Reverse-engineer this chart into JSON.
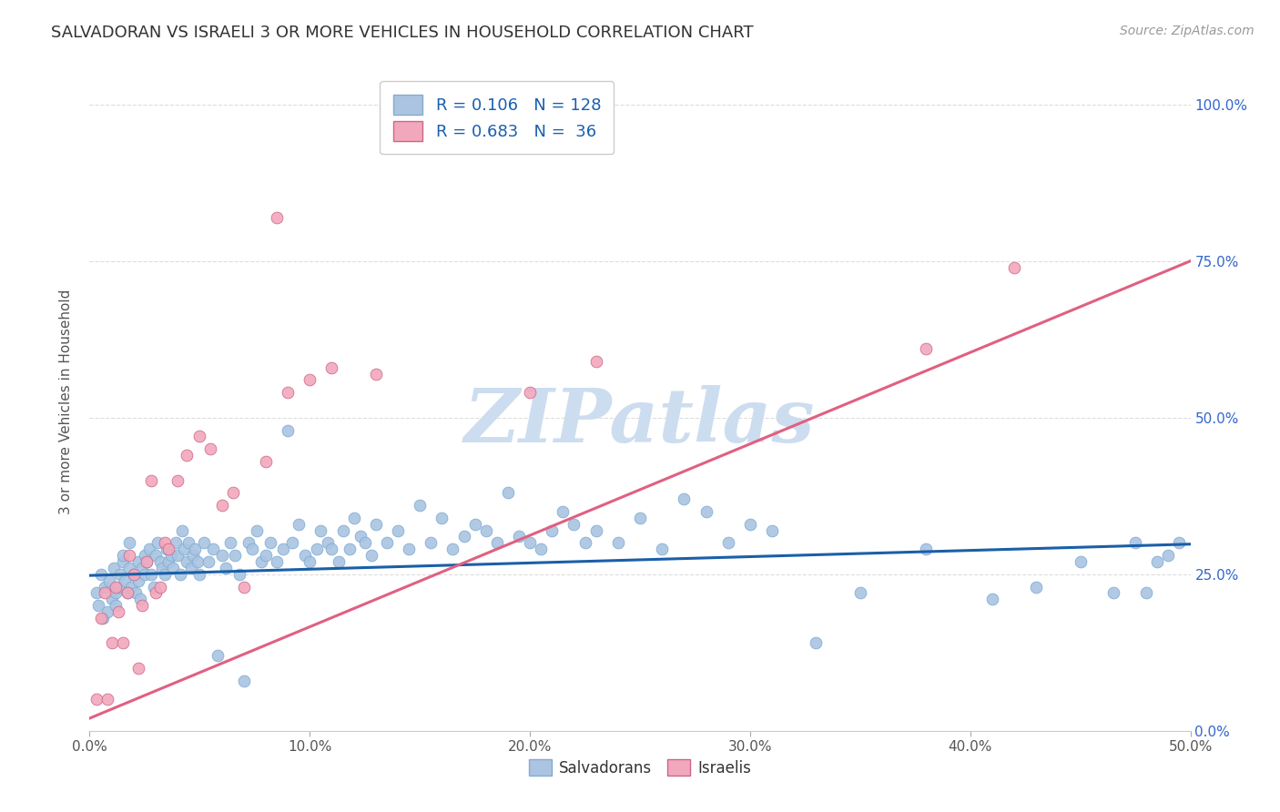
{
  "title": "SALVADORAN VS ISRAELI 3 OR MORE VEHICLES IN HOUSEHOLD CORRELATION CHART",
  "source": "Source: ZipAtlas.com",
  "ylabel": "3 or more Vehicles in Household",
  "xlim": [
    0.0,
    0.5
  ],
  "ylim": [
    0.0,
    1.05
  ],
  "xticks": [
    0.0,
    0.1,
    0.2,
    0.3,
    0.4,
    0.5
  ],
  "xtick_labels": [
    "0.0%",
    "10.0%",
    "20.0%",
    "30.0%",
    "40.0%",
    "50.0%"
  ],
  "yticks_right": [
    0.0,
    0.25,
    0.5,
    0.75,
    1.0
  ],
  "ytick_labels_right": [
    "0.0%",
    "25.0%",
    "50.0%",
    "75.0%",
    "100.0%"
  ],
  "salvadorans_R": 0.106,
  "salvadorans_N": 128,
  "israelis_R": 0.683,
  "israelis_N": 36,
  "scatter_color_salvadorans": "#aac4e2",
  "scatter_color_israelis": "#f2a8bc",
  "line_color_salvadorans": "#1a5fa8",
  "line_color_israelis": "#e06080",
  "legend_color_salvadorans": "#aac4e2",
  "legend_color_israelis": "#f2a8bc",
  "watermark_text": "ZIPatlas",
  "watermark_color": "#ccddef",
  "background_color": "#ffffff",
  "grid_color": "#dddddd",
  "title_fontsize": 13,
  "label_fontsize": 11,
  "tick_fontsize": 11,
  "legend_fontsize": 13,
  "source_fontsize": 10,
  "sal_line_x0": 0.0,
  "sal_line_y0": 0.248,
  "sal_line_x1": 0.5,
  "sal_line_y1": 0.298,
  "isr_line_x0": 0.0,
  "isr_line_y0": 0.02,
  "isr_line_x1": 0.5,
  "isr_line_y1": 0.75,
  "salvadorans_x": [
    0.003,
    0.004,
    0.005,
    0.006,
    0.007,
    0.008,
    0.009,
    0.01,
    0.011,
    0.012,
    0.012,
    0.013,
    0.014,
    0.015,
    0.015,
    0.016,
    0.017,
    0.018,
    0.018,
    0.019,
    0.02,
    0.021,
    0.022,
    0.022,
    0.023,
    0.024,
    0.025,
    0.025,
    0.026,
    0.027,
    0.028,
    0.029,
    0.03,
    0.031,
    0.032,
    0.033,
    0.034,
    0.035,
    0.036,
    0.037,
    0.038,
    0.039,
    0.04,
    0.041,
    0.042,
    0.043,
    0.044,
    0.045,
    0.046,
    0.047,
    0.048,
    0.049,
    0.05,
    0.052,
    0.054,
    0.056,
    0.058,
    0.06,
    0.062,
    0.064,
    0.066,
    0.068,
    0.07,
    0.072,
    0.074,
    0.076,
    0.078,
    0.08,
    0.082,
    0.085,
    0.088,
    0.09,
    0.092,
    0.095,
    0.098,
    0.1,
    0.103,
    0.105,
    0.108,
    0.11,
    0.113,
    0.115,
    0.118,
    0.12,
    0.123,
    0.125,
    0.128,
    0.13,
    0.135,
    0.14,
    0.145,
    0.15,
    0.155,
    0.16,
    0.165,
    0.17,
    0.175,
    0.18,
    0.185,
    0.19,
    0.195,
    0.2,
    0.205,
    0.21,
    0.215,
    0.22,
    0.225,
    0.23,
    0.24,
    0.25,
    0.26,
    0.27,
    0.28,
    0.29,
    0.3,
    0.31,
    0.33,
    0.35,
    0.38,
    0.41,
    0.43,
    0.45,
    0.465,
    0.475,
    0.48,
    0.485,
    0.49,
    0.495
  ],
  "salvadorans_y": [
    0.22,
    0.2,
    0.25,
    0.18,
    0.23,
    0.19,
    0.24,
    0.21,
    0.26,
    0.22,
    0.2,
    0.23,
    0.25,
    0.27,
    0.28,
    0.24,
    0.22,
    0.26,
    0.3,
    0.23,
    0.25,
    0.22,
    0.27,
    0.24,
    0.21,
    0.26,
    0.28,
    0.25,
    0.27,
    0.29,
    0.25,
    0.23,
    0.28,
    0.3,
    0.27,
    0.26,
    0.25,
    0.29,
    0.27,
    0.28,
    0.26,
    0.3,
    0.28,
    0.25,
    0.32,
    0.29,
    0.27,
    0.3,
    0.26,
    0.28,
    0.29,
    0.27,
    0.25,
    0.3,
    0.27,
    0.29,
    0.12,
    0.28,
    0.26,
    0.3,
    0.28,
    0.25,
    0.08,
    0.3,
    0.29,
    0.32,
    0.27,
    0.28,
    0.3,
    0.27,
    0.29,
    0.48,
    0.3,
    0.33,
    0.28,
    0.27,
    0.29,
    0.32,
    0.3,
    0.29,
    0.27,
    0.32,
    0.29,
    0.34,
    0.31,
    0.3,
    0.28,
    0.33,
    0.3,
    0.32,
    0.29,
    0.36,
    0.3,
    0.34,
    0.29,
    0.31,
    0.33,
    0.32,
    0.3,
    0.38,
    0.31,
    0.3,
    0.29,
    0.32,
    0.35,
    0.33,
    0.3,
    0.32,
    0.3,
    0.34,
    0.29,
    0.37,
    0.35,
    0.3,
    0.33,
    0.32,
    0.14,
    0.22,
    0.29,
    0.21,
    0.23,
    0.27,
    0.22,
    0.3,
    0.22,
    0.27,
    0.28,
    0.3
  ],
  "israelis_x": [
    0.003,
    0.005,
    0.007,
    0.008,
    0.01,
    0.012,
    0.013,
    0.015,
    0.017,
    0.018,
    0.02,
    0.022,
    0.024,
    0.026,
    0.028,
    0.03,
    0.032,
    0.034,
    0.036,
    0.04,
    0.044,
    0.05,
    0.055,
    0.06,
    0.065,
    0.07,
    0.08,
    0.085,
    0.09,
    0.1,
    0.11,
    0.13,
    0.2,
    0.23,
    0.38,
    0.42
  ],
  "israelis_y": [
    0.05,
    0.18,
    0.22,
    0.05,
    0.14,
    0.23,
    0.19,
    0.14,
    0.22,
    0.28,
    0.25,
    0.1,
    0.2,
    0.27,
    0.4,
    0.22,
    0.23,
    0.3,
    0.29,
    0.4,
    0.44,
    0.47,
    0.45,
    0.36,
    0.38,
    0.23,
    0.43,
    0.82,
    0.54,
    0.56,
    0.58,
    0.57,
    0.54,
    0.59,
    0.61,
    0.74
  ]
}
